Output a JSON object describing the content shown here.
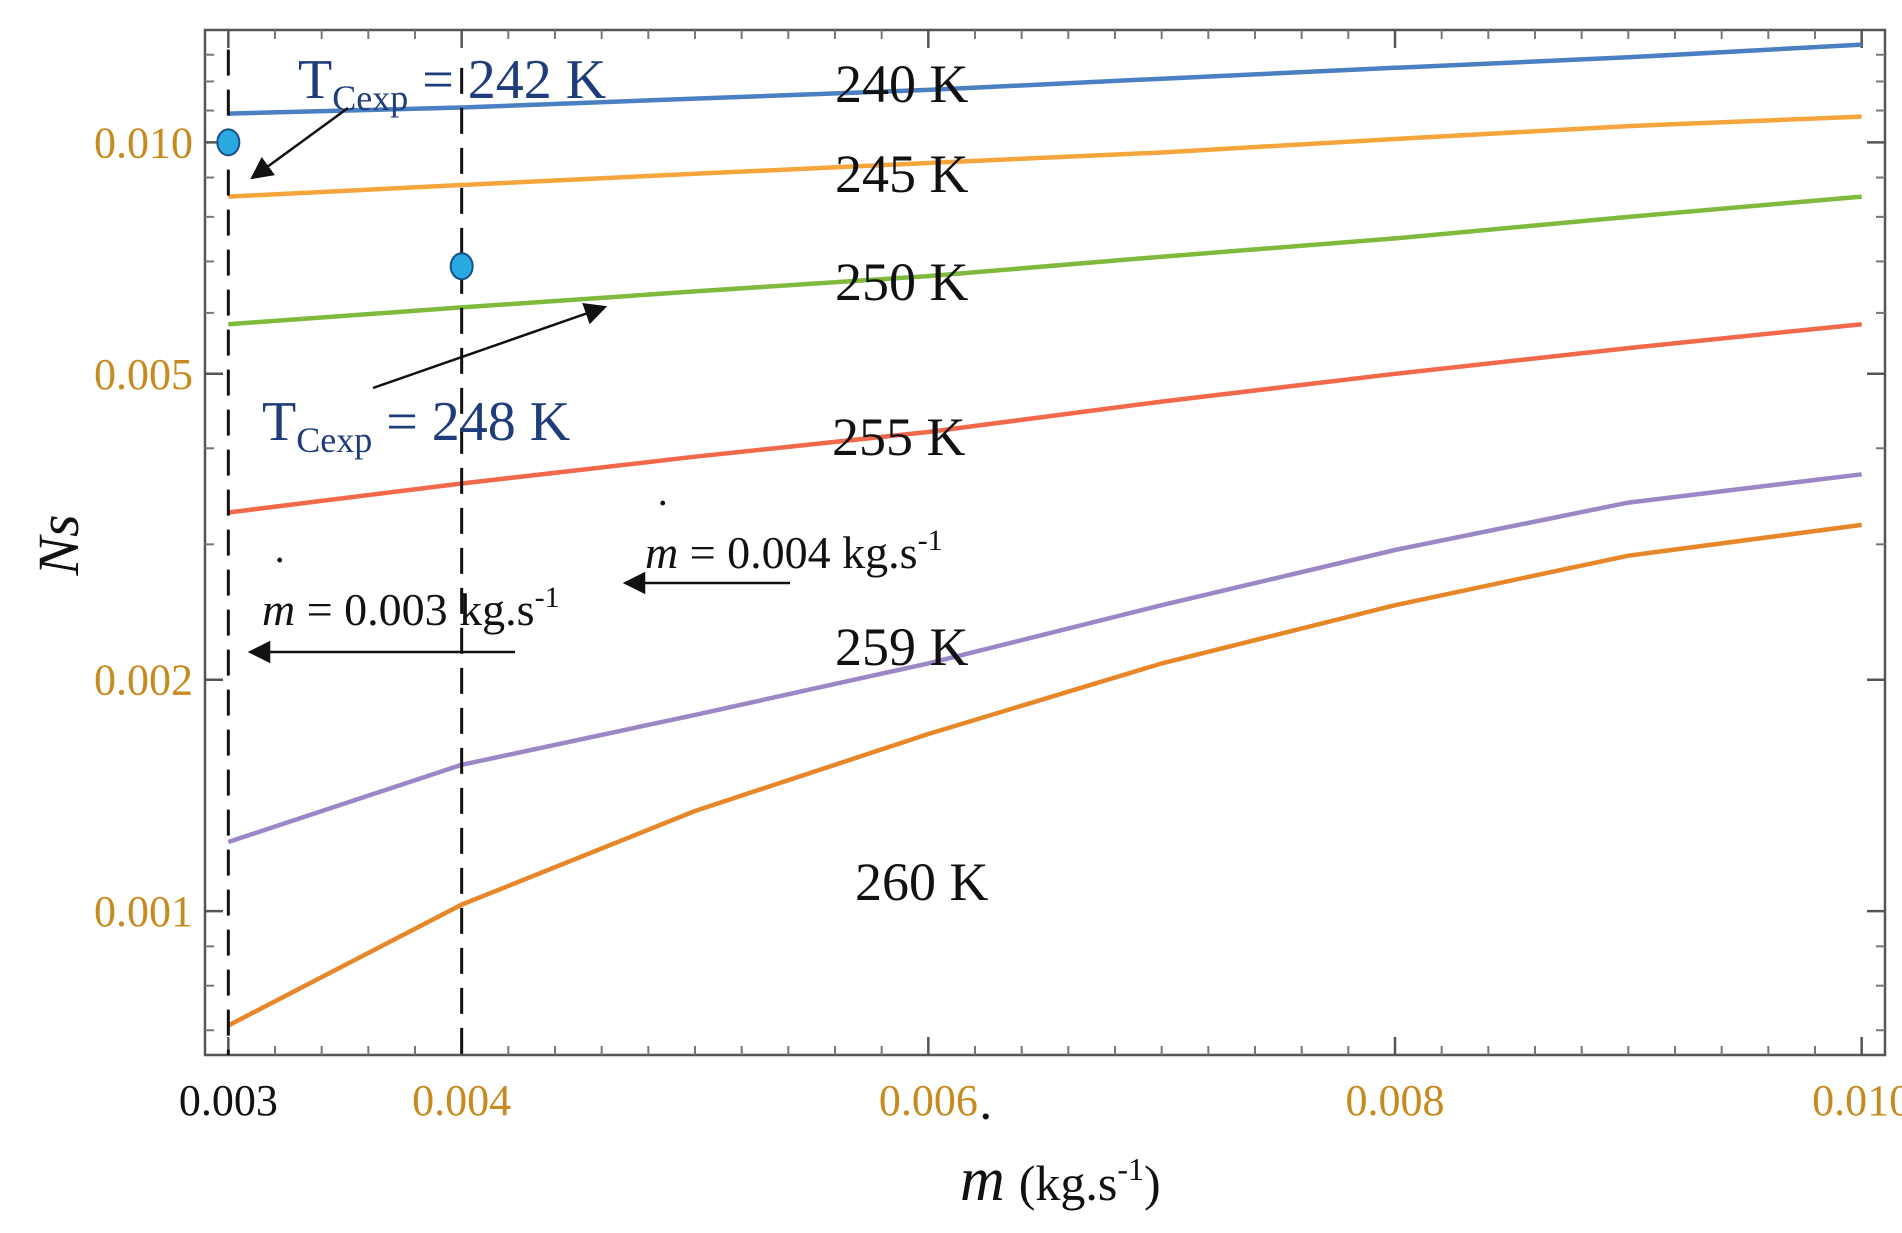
{
  "chart_data": {
    "type": "line",
    "title": "",
    "xlabel": {
      "symbol": "m",
      "unit": "(kg.s",
      "unit_exp": "-1",
      "unit_close": ")"
    },
    "ylabel": "Ns",
    "yscale": "log",
    "xlim": [
      0.0029,
      0.0101
    ],
    "ylim": [
      0.00065,
      0.014
    ],
    "x_ticks": [
      {
        "value": 0.003,
        "label": "0.003",
        "color": "#111111"
      },
      {
        "value": 0.004,
        "label": "0.004",
        "color": "#c78a1e"
      },
      {
        "value": 0.006,
        "label": "0.006",
        "color": "#c78a1e"
      },
      {
        "value": 0.008,
        "label": "0.008",
        "color": "#c78a1e"
      },
      {
        "value": 0.01,
        "label": "0.010",
        "color": "#c78a1e"
      }
    ],
    "y_ticks": [
      {
        "value": 0.001,
        "label": "0.001"
      },
      {
        "value": 0.002,
        "label": "0.002"
      },
      {
        "value": 0.005,
        "label": "0.005"
      },
      {
        "value": 0.01,
        "label": "0.010"
      }
    ],
    "y_tick_color": "#c78a1e",
    "x": [
      0.003,
      0.004,
      0.005,
      0.006,
      0.007,
      0.008,
      0.009,
      0.01
    ],
    "series": [
      {
        "name": "240 K",
        "color": "#4a7fc1",
        "values": [
          0.0109,
          0.0111,
          0.0114,
          0.0117,
          0.0121,
          0.0125,
          0.0129,
          0.0134
        ]
      },
      {
        "name": "245 K",
        "color": "#f5a53b",
        "values": [
          0.0085,
          0.0088,
          0.0091,
          0.0094,
          0.0097,
          0.0101,
          0.0105,
          0.0108
        ]
      },
      {
        "name": "250 K",
        "color": "#7fba3c",
        "values": [
          0.0058,
          0.0061,
          0.0064,
          0.0067,
          0.0071,
          0.0075,
          0.008,
          0.0085
        ]
      },
      {
        "name": "255 K",
        "color": "#f2684a",
        "values": [
          0.0033,
          0.0036,
          0.0039,
          0.0042,
          0.0046,
          0.005,
          0.0054,
          0.0058
        ]
      },
      {
        "name": "259 K",
        "color": "#9b87c6",
        "values": [
          0.00123,
          0.00155,
          0.0018,
          0.0021,
          0.0025,
          0.00295,
          0.0034,
          0.0037
        ]
      },
      {
        "name": "260 K",
        "color": "#e8862a",
        "values": [
          0.00071,
          0.00102,
          0.00135,
          0.0017,
          0.0021,
          0.0025,
          0.0029,
          0.00318
        ]
      }
    ],
    "points": [
      {
        "x": 0.003,
        "y": 0.01,
        "color": "#29a9e0"
      },
      {
        "x": 0.004,
        "y": 0.0069,
        "color": "#29a9e0"
      }
    ],
    "vlines": [
      0.003,
      0.004
    ],
    "annotations": [
      {
        "main": "T",
        "sub": "Cexp",
        "rest": " = 242 K"
      },
      {
        "main": "T",
        "sub": "Cexp",
        "rest": " = 248 K"
      },
      {
        "prefix": "m",
        "rest": " = 0.003 kg.s",
        "exp": "-1"
      },
      {
        "prefix": "m",
        "rest": " = 0.004 kg.s",
        "exp": "-1"
      }
    ]
  }
}
